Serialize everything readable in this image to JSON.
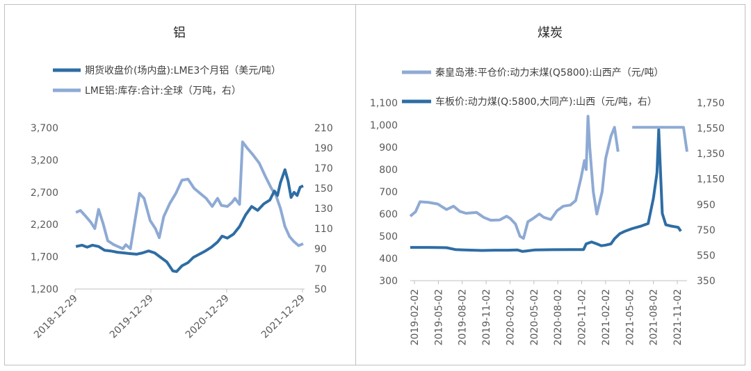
{
  "chart_data": [
    {
      "type": "line",
      "title": "铝",
      "colors": {
        "dark": "#2e6da4",
        "light": "#8eaad4"
      },
      "series": [
        {
          "name": "期货收盘价(场内盘):LME3个月铝（美元/吨）",
          "axis": "left",
          "color": "#2e6da4"
        },
        {
          "name": "LME铝:库存:合计:全球（万吨，右）",
          "axis": "right",
          "color": "#8eaad4"
        }
      ],
      "ylim_left": [
        1200,
        3700
      ],
      "ylim_right": [
        50,
        210
      ],
      "yticks_left": [
        "3,700",
        "3,200",
        "2,700",
        "2,200",
        "1,700",
        "1,200"
      ],
      "yticks_right": [
        "210",
        "190",
        "170",
        "150",
        "130",
        "110",
        "90",
        "70",
        "50"
      ],
      "xticks": [
        "2018-12-29",
        "2019-12-29",
        "2020-12-29",
        "2021-12-29"
      ],
      "x_range": [
        2018.99,
        2022.0
      ],
      "price_points": [
        [
          2019.0,
          1860
        ],
        [
          2019.08,
          1880
        ],
        [
          2019.15,
          1850
        ],
        [
          2019.22,
          1880
        ],
        [
          2019.3,
          1860
        ],
        [
          2019.38,
          1800
        ],
        [
          2019.46,
          1790
        ],
        [
          2019.55,
          1770
        ],
        [
          2019.63,
          1760
        ],
        [
          2019.71,
          1750
        ],
        [
          2019.8,
          1740
        ],
        [
          2019.88,
          1760
        ],
        [
          2019.96,
          1790
        ],
        [
          2020.04,
          1760
        ],
        [
          2020.12,
          1690
        ],
        [
          2020.2,
          1620
        ],
        [
          2020.28,
          1480
        ],
        [
          2020.33,
          1470
        ],
        [
          2020.4,
          1560
        ],
        [
          2020.48,
          1610
        ],
        [
          2020.55,
          1690
        ],
        [
          2020.63,
          1740
        ],
        [
          2020.71,
          1790
        ],
        [
          2020.79,
          1850
        ],
        [
          2020.87,
          1930
        ],
        [
          2020.93,
          2020
        ],
        [
          2021.0,
          1990
        ],
        [
          2021.08,
          2050
        ],
        [
          2021.16,
          2170
        ],
        [
          2021.24,
          2350
        ],
        [
          2021.32,
          2480
        ],
        [
          2021.4,
          2420
        ],
        [
          2021.48,
          2520
        ],
        [
          2021.56,
          2580
        ],
        [
          2021.62,
          2720
        ],
        [
          2021.66,
          2650
        ],
        [
          2021.7,
          2850
        ],
        [
          2021.76,
          3050
        ],
        [
          2021.8,
          2880
        ],
        [
          2021.84,
          2620
        ],
        [
          2021.88,
          2700
        ],
        [
          2021.92,
          2650
        ],
        [
          2021.96,
          2780
        ],
        [
          2022.0,
          2800
        ]
      ],
      "stock_points": [
        [
          2019.0,
          126
        ],
        [
          2019.06,
          128
        ],
        [
          2019.12,
          123
        ],
        [
          2019.2,
          116
        ],
        [
          2019.25,
          110
        ],
        [
          2019.3,
          129
        ],
        [
          2019.36,
          115
        ],
        [
          2019.42,
          98
        ],
        [
          2019.5,
          94
        ],
        [
          2019.56,
          92
        ],
        [
          2019.62,
          90
        ],
        [
          2019.66,
          94
        ],
        [
          2019.72,
          90
        ],
        [
          2019.78,
          118
        ],
        [
          2019.84,
          145
        ],
        [
          2019.9,
          140
        ],
        [
          2019.98,
          118
        ],
        [
          2020.05,
          110
        ],
        [
          2020.1,
          101
        ],
        [
          2020.16,
          122
        ],
        [
          2020.24,
          135
        ],
        [
          2020.32,
          145
        ],
        [
          2020.4,
          158
        ],
        [
          2020.48,
          159
        ],
        [
          2020.56,
          150
        ],
        [
          2020.64,
          145
        ],
        [
          2020.72,
          140
        ],
        [
          2020.8,
          132
        ],
        [
          2020.87,
          140
        ],
        [
          2020.92,
          133
        ],
        [
          2021.0,
          132
        ],
        [
          2021.06,
          136
        ],
        [
          2021.1,
          140
        ],
        [
          2021.16,
          134
        ],
        [
          2021.2,
          196
        ],
        [
          2021.26,
          190
        ],
        [
          2021.34,
          183
        ],
        [
          2021.42,
          175
        ],
        [
          2021.5,
          162
        ],
        [
          2021.58,
          150
        ],
        [
          2021.64,
          143
        ],
        [
          2021.7,
          130
        ],
        [
          2021.76,
          112
        ],
        [
          2021.82,
          102
        ],
        [
          2021.88,
          97
        ],
        [
          2021.94,
          93
        ],
        [
          2022.0,
          95
        ]
      ]
    },
    {
      "type": "line",
      "title": "煤炭",
      "colors": {
        "light": "#8eaad4",
        "dark": "#2e6da4"
      },
      "series": [
        {
          "name": "秦皇岛港:平仓价:动力末煤(Q5800):山西产（元/吨）",
          "axis": "left",
          "color": "#8eaad4"
        },
        {
          "name": "车板价:动力煤(Q:5800,大同产):山西（元/吨，右）",
          "axis": "right",
          "color": "#2e6da4"
        }
      ],
      "ylim_left": [
        300,
        1100
      ],
      "ylim_right": [
        350,
        1750
      ],
      "yticks_left": [
        "1,100",
        "1,000",
        "900",
        "800",
        "700",
        "600",
        "500",
        "400",
        "300"
      ],
      "yticks_right": [
        "1,750",
        "1,550",
        "1,350",
        "1,150",
        "950",
        "750",
        "550",
        "350"
      ],
      "xticks": [
        "2019-02-02",
        "2019-05-02",
        "2019-08-02",
        "2019-11-02",
        "2020-02-02",
        "2020-05-02",
        "2020-08-02",
        "2020-11-02",
        "2021-02-02",
        "2021-05-02",
        "2021-08-02",
        "2021-11-02"
      ],
      "x_range": [
        2019.09,
        2022.22
      ],
      "port_points": [
        [
          2019.09,
          590
        ],
        [
          2019.15,
          610
        ],
        [
          2019.2,
          655
        ],
        [
          2019.3,
          652
        ],
        [
          2019.4,
          645
        ],
        [
          2019.5,
          620
        ],
        [
          2019.58,
          635
        ],
        [
          2019.65,
          612
        ],
        [
          2019.72,
          603
        ],
        [
          2019.84,
          607
        ],
        [
          2019.92,
          585
        ],
        [
          2020.0,
          572
        ],
        [
          2020.1,
          573
        ],
        [
          2020.18,
          590
        ],
        [
          2020.22,
          580
        ],
        [
          2020.28,
          555
        ],
        [
          2020.33,
          500
        ],
        [
          2020.37,
          490
        ],
        [
          2020.42,
          565
        ],
        [
          2020.48,
          580
        ],
        [
          2020.55,
          600
        ],
        [
          2020.6,
          585
        ],
        [
          2020.68,
          575
        ],
        [
          2020.75,
          615
        ],
        [
          2020.82,
          635
        ],
        [
          2020.9,
          640
        ],
        [
          2020.96,
          660
        ],
        [
          2021.02,
          760
        ],
        [
          2021.06,
          840
        ],
        [
          2021.08,
          800
        ],
        [
          2021.1,
          1040
        ],
        [
          2021.12,
          900
        ],
        [
          2021.16,
          700
        ],
        [
          2021.2,
          600
        ],
        [
          2021.26,
          700
        ],
        [
          2021.3,
          850
        ],
        [
          2021.36,
          950
        ],
        [
          2021.4,
          990
        ],
        [
          2021.44,
          880
        ]
      ],
      "port_points_2": [
        [
          2021.6,
          990
        ],
        [
          2021.7,
          990
        ],
        [
          2021.8,
          990
        ],
        [
          2021.9,
          990
        ],
        [
          2022.0,
          990
        ],
        [
          2022.1,
          990
        ],
        [
          2022.18,
          990
        ],
        [
          2022.22,
          880
        ]
      ],
      "truck_points": [
        [
          2019.09,
          612
        ],
        [
          2019.3,
          612
        ],
        [
          2019.5,
          610
        ],
        [
          2019.6,
          595
        ],
        [
          2019.7,
          592
        ],
        [
          2019.9,
          588
        ],
        [
          2020.05,
          590
        ],
        [
          2020.2,
          590
        ],
        [
          2020.3,
          592
        ],
        [
          2020.36,
          580
        ],
        [
          2020.42,
          585
        ],
        [
          2020.5,
          592
        ],
        [
          2020.7,
          594
        ],
        [
          2020.9,
          595
        ],
        [
          2021.05,
          595
        ],
        [
          2021.08,
          640
        ],
        [
          2021.14,
          655
        ],
        [
          2021.2,
          640
        ],
        [
          2021.25,
          625
        ],
        [
          2021.3,
          630
        ],
        [
          2021.36,
          640
        ],
        [
          2021.4,
          680
        ],
        [
          2021.46,
          720
        ],
        [
          2021.52,
          740
        ],
        [
          2021.6,
          760
        ],
        [
          2021.7,
          780
        ],
        [
          2021.78,
          800
        ],
        [
          2021.84,
          1000
        ],
        [
          2021.88,
          1200
        ],
        [
          2021.9,
          1540
        ],
        [
          2021.92,
          1200
        ],
        [
          2021.94,
          880
        ],
        [
          2021.98,
          790
        ],
        [
          2022.04,
          780
        ],
        [
          2022.12,
          770
        ],
        [
          2022.15,
          740
        ]
      ]
    }
  ]
}
